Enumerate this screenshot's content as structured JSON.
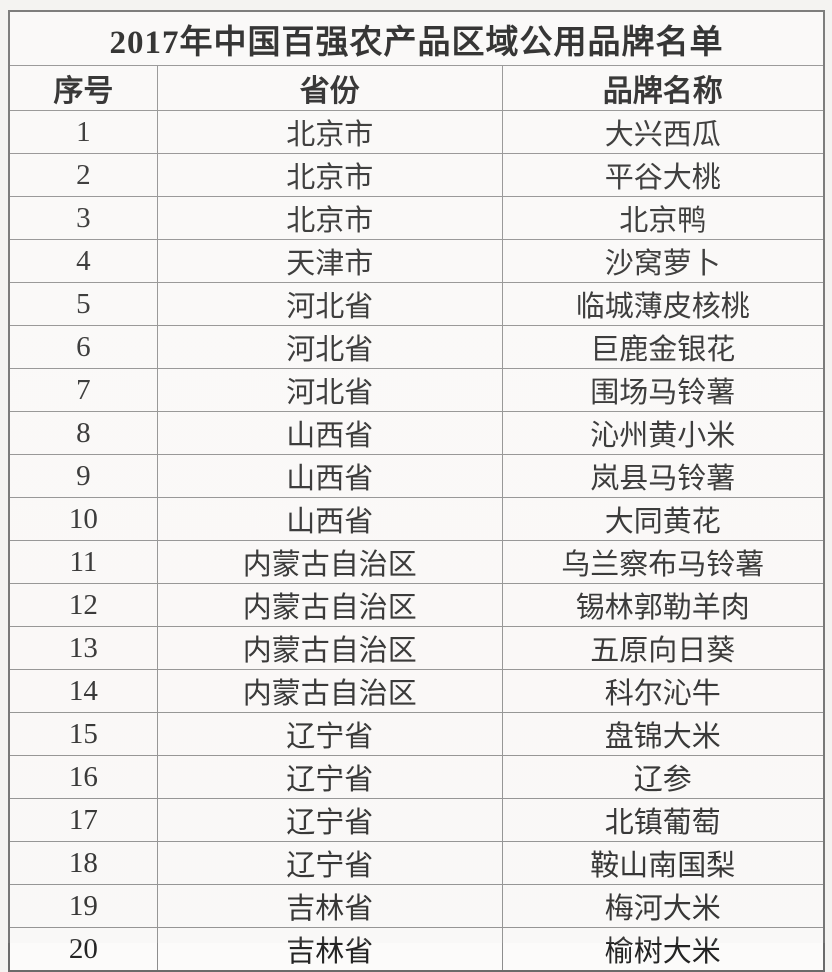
{
  "title": "2017年中国百强农产品区域公用品牌名单",
  "table": {
    "columns": [
      "序号",
      "省份",
      "品牌名称"
    ],
    "rows": [
      {
        "no": "1",
        "province": "北京市",
        "brand": "大兴西瓜"
      },
      {
        "no": "2",
        "province": "北京市",
        "brand": "平谷大桃"
      },
      {
        "no": "3",
        "province": "北京市",
        "brand": "北京鸭"
      },
      {
        "no": "4",
        "province": "天津市",
        "brand": "沙窝萝卜"
      },
      {
        "no": "5",
        "province": "河北省",
        "brand": "临城薄皮核桃"
      },
      {
        "no": "6",
        "province": "河北省",
        "brand": "巨鹿金银花"
      },
      {
        "no": "7",
        "province": "河北省",
        "brand": "围场马铃薯"
      },
      {
        "no": "8",
        "province": "山西省",
        "brand": "沁州黄小米"
      },
      {
        "no": "9",
        "province": "山西省",
        "brand": "岚县马铃薯"
      },
      {
        "no": "10",
        "province": "山西省",
        "brand": "大同黄花"
      },
      {
        "no": "11",
        "province": "内蒙古自治区",
        "brand": "乌兰察布马铃薯"
      },
      {
        "no": "12",
        "province": "内蒙古自治区",
        "brand": "锡林郭勒羊肉"
      },
      {
        "no": "13",
        "province": "内蒙古自治区",
        "brand": "五原向日葵"
      },
      {
        "no": "14",
        "province": "内蒙古自治区",
        "brand": "科尔沁牛"
      },
      {
        "no": "15",
        "province": "辽宁省",
        "brand": "盘锦大米"
      },
      {
        "no": "16",
        "province": "辽宁省",
        "brand": "辽参"
      },
      {
        "no": "17",
        "province": "辽宁省",
        "brand": "北镇葡萄"
      },
      {
        "no": "18",
        "province": "辽宁省",
        "brand": "鞍山南国梨"
      },
      {
        "no": "19",
        "province": "吉林省",
        "brand": "梅河大米"
      },
      {
        "no": "20",
        "province": "吉林省",
        "brand": "榆树大米"
      }
    ]
  },
  "colors": {
    "page_background": "#f4f3f1",
    "cell_background": "#fcfbfa",
    "border": "#8d8d8d",
    "text": "#1c1c1c"
  }
}
